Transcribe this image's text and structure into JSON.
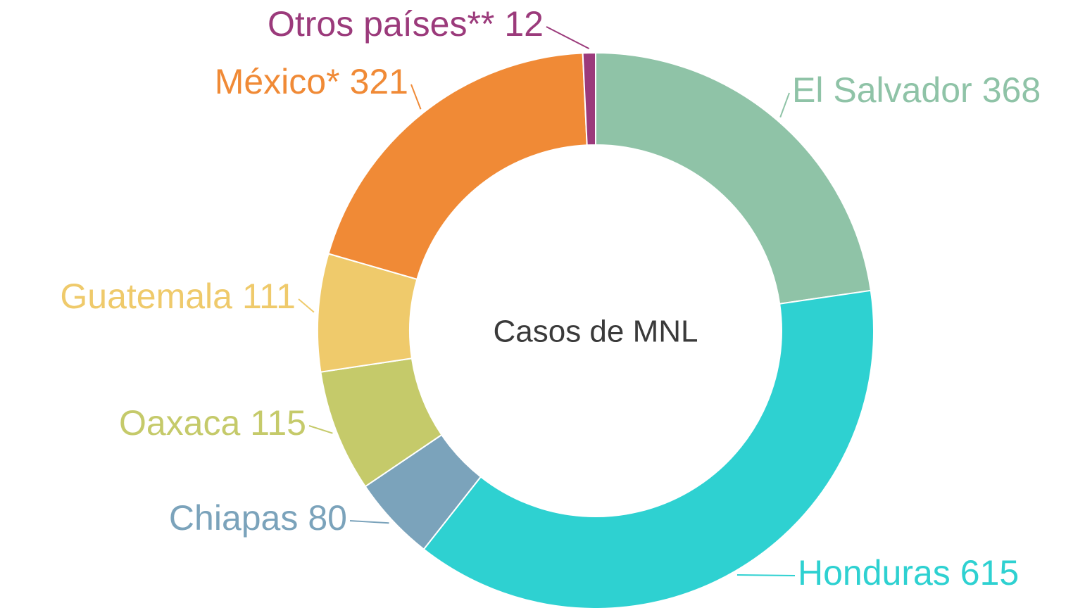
{
  "chart_data": {
    "type": "donut",
    "center_label": "Casos de MNL",
    "categories": [
      "El Salvador",
      "Honduras",
      "Chiapas",
      "Oaxaca",
      "Guatemala",
      "México*",
      "Otros países**"
    ],
    "values": [
      368,
      615,
      80,
      115,
      111,
      321,
      12
    ],
    "colors": [
      "#8fc3a7",
      "#2ed1d1",
      "#7ba3bb",
      "#c5ca6a",
      "#efca6b",
      "#f08a36",
      "#9b3a7b"
    ]
  }
}
